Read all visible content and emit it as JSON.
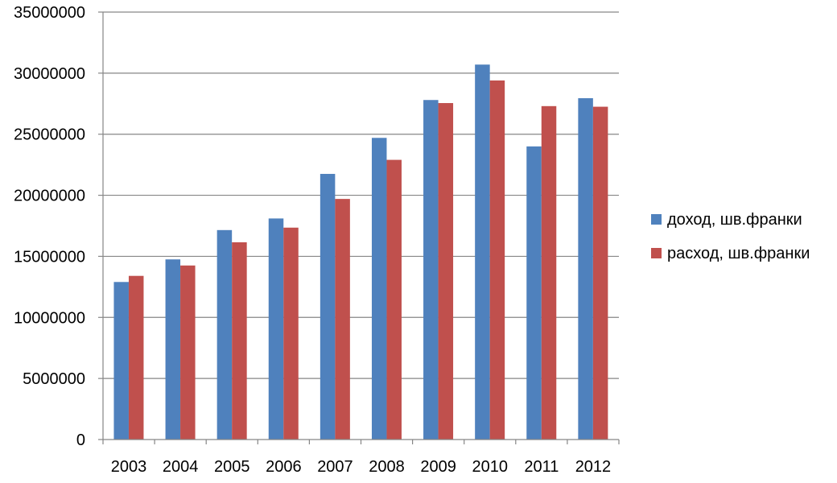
{
  "chart_data": {
    "type": "bar",
    "title": "",
    "xlabel": "",
    "ylabel": "",
    "categories": [
      "2003",
      "2004",
      "2005",
      "2006",
      "2007",
      "2008",
      "2009",
      "2010",
      "2011",
      "2012"
    ],
    "series": [
      {
        "name": "доход, шв.франки",
        "color": "#4f81bd",
        "values": [
          12900000,
          14750000,
          17150000,
          18100000,
          21750000,
          24700000,
          27800000,
          30700000,
          24000000,
          27950000
        ]
      },
      {
        "name": "расход, шв.франки",
        "color": "#c0504d",
        "values": [
          13400000,
          14250000,
          16150000,
          17350000,
          19700000,
          22900000,
          27550000,
          29400000,
          27300000,
          27250000
        ]
      }
    ],
    "ylim": [
      0,
      35000000
    ],
    "y_ticks": [
      0,
      5000000,
      10000000,
      15000000,
      20000000,
      25000000,
      30000000,
      35000000
    ],
    "y_tick_labels": [
      "0",
      "5000000",
      "10000000",
      "15000000",
      "20000000",
      "25000000",
      "30000000",
      "35000000"
    ],
    "grid": true,
    "legend_position": "right"
  }
}
